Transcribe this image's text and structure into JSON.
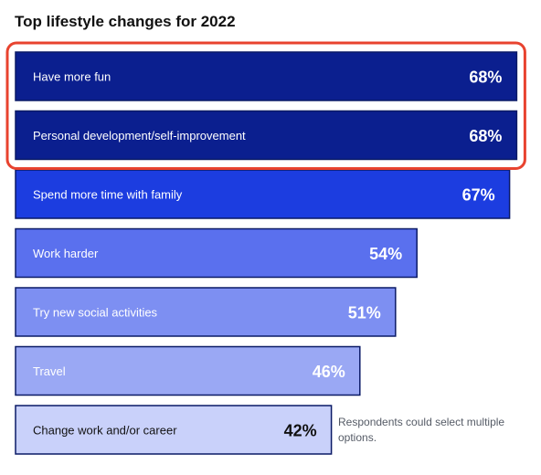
{
  "chart_data": {
    "type": "bar",
    "orientation": "horizontal",
    "title": "Top lifestyle changes for 2022",
    "categories": [
      "Have more fun",
      "Personal development/self-improvement",
      "Spend more time with family",
      "Work harder",
      "Try new social activities",
      "Travel",
      "Change work and/or career"
    ],
    "values": [
      68,
      68,
      67,
      54,
      51,
      46,
      42
    ],
    "value_labels": [
      "68%",
      "68%",
      "67%",
      "54%",
      "51%",
      "46%",
      "42%"
    ],
    "unit": "%",
    "bar_colors": [
      "#0b1f8f",
      "#0b1f8f",
      "#1c3de0",
      "#5a70ee",
      "#7d8ff2",
      "#9aa8f4",
      "#c9d1fa"
    ],
    "label_colors": [
      "#ffffff",
      "#ffffff",
      "#ffffff",
      "#ffffff",
      "#ffffff",
      "#ffffff",
      "#111111"
    ],
    "border_color": "#0a1a66",
    "highlight": {
      "indices": [
        0,
        1
      ],
      "color": "#e8432f"
    },
    "note": "Respondents could select multiple options.",
    "grid": false,
    "legend": "none"
  }
}
